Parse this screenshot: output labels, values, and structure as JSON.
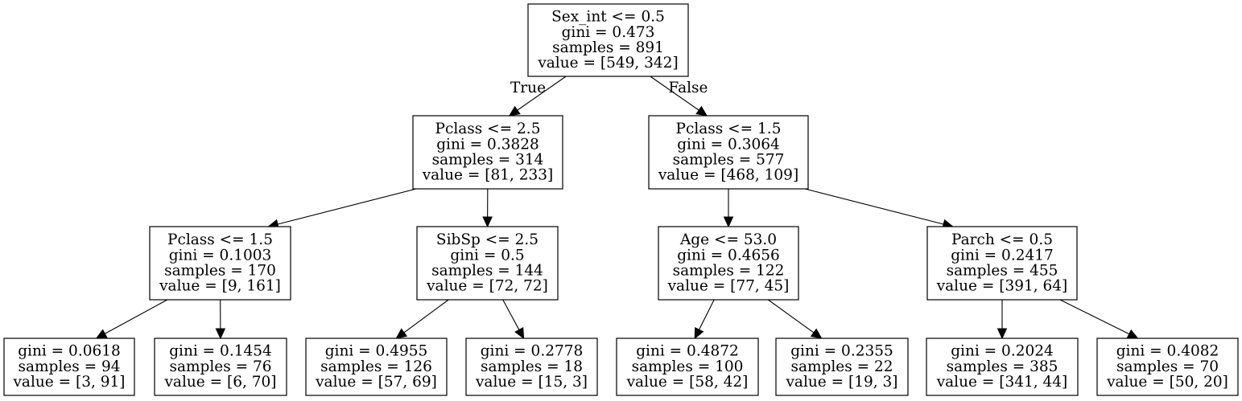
{
  "tree": {
    "edge_labels": {
      "left": "True",
      "right": "False"
    },
    "nodes": [
      {
        "id": "n0",
        "lines": [
          "Sex_int <= 0.5",
          "gini = 0.473",
          "samples = 891",
          "value = [549, 342]"
        ]
      },
      {
        "id": "n1",
        "lines": [
          "Pclass <= 2.5",
          "gini = 0.3828",
          "samples = 314",
          "value = [81, 233]"
        ]
      },
      {
        "id": "n2",
        "lines": [
          "Pclass <= 1.5",
          "gini = 0.3064",
          "samples = 577",
          "value = [468, 109]"
        ]
      },
      {
        "id": "n3",
        "lines": [
          "Pclass <= 1.5",
          "gini = 0.1003",
          "samples = 170",
          "value = [9, 161]"
        ]
      },
      {
        "id": "n4",
        "lines": [
          "SibSp <= 2.5",
          "gini = 0.5",
          "samples = 144",
          "value = [72, 72]"
        ]
      },
      {
        "id": "n5",
        "lines": [
          "Age <= 53.0",
          "gini = 0.4656",
          "samples = 122",
          "value = [77, 45]"
        ]
      },
      {
        "id": "n6",
        "lines": [
          "Parch <= 0.5",
          "gini = 0.2417",
          "samples = 455",
          "value = [391, 64]"
        ]
      },
      {
        "id": "n7",
        "lines": [
          "gini = 0.0618",
          "samples = 94",
          "value = [3, 91]"
        ]
      },
      {
        "id": "n8",
        "lines": [
          "gini = 0.1454",
          "samples = 76",
          "value = [6, 70]"
        ]
      },
      {
        "id": "n9",
        "lines": [
          "gini = 0.4955",
          "samples = 126",
          "value = [57, 69]"
        ]
      },
      {
        "id": "n10",
        "lines": [
          "gini = 0.2778",
          "samples = 18",
          "value = [15, 3]"
        ]
      },
      {
        "id": "n11",
        "lines": [
          "gini = 0.4872",
          "samples = 100",
          "value = [58, 42]"
        ]
      },
      {
        "id": "n12",
        "lines": [
          "gini = 0.2355",
          "samples = 22",
          "value = [19, 3]"
        ]
      },
      {
        "id": "n13",
        "lines": [
          "gini = 0.2024",
          "samples = 385",
          "value = [341, 44]"
        ]
      },
      {
        "id": "n14",
        "lines": [
          "gini = 0.4082",
          "samples = 70",
          "value = [50, 20]"
        ]
      }
    ],
    "edges": [
      {
        "from": "n0",
        "to": "n1"
      },
      {
        "from": "n0",
        "to": "n2"
      },
      {
        "from": "n1",
        "to": "n3"
      },
      {
        "from": "n1",
        "to": "n4"
      },
      {
        "from": "n2",
        "to": "n5"
      },
      {
        "from": "n2",
        "to": "n6"
      },
      {
        "from": "n3",
        "to": "n7"
      },
      {
        "from": "n3",
        "to": "n8"
      },
      {
        "from": "n4",
        "to": "n9"
      },
      {
        "from": "n4",
        "to": "n10"
      },
      {
        "from": "n5",
        "to": "n11"
      },
      {
        "from": "n5",
        "to": "n12"
      },
      {
        "from": "n6",
        "to": "n13"
      },
      {
        "from": "n6",
        "to": "n14"
      }
    ]
  }
}
